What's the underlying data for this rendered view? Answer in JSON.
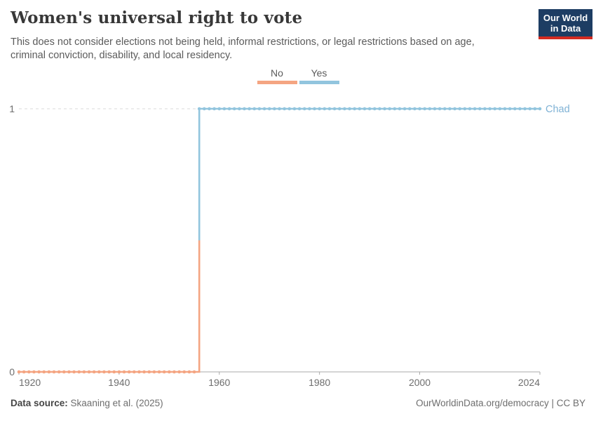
{
  "header": {
    "title": "Women's universal right to vote",
    "subtitle": "This does not consider elections not being held, informal restrictions, or legal restrictions based on age, criminal conviction, disability, and local residency.",
    "logo": {
      "line1": "Our World",
      "line2": "in Data"
    }
  },
  "legend": {
    "items": [
      {
        "label": "No",
        "color": "#F4A582"
      },
      {
        "label": "Yes",
        "color": "#92C5DE"
      }
    ]
  },
  "chart_data": {
    "type": "line",
    "step": true,
    "title": "Women's universal right to vote",
    "entity": "Chad",
    "xlim": [
      1920,
      2024
    ],
    "ylim": [
      0,
      1
    ],
    "x_ticks": [
      1920,
      1940,
      1960,
      1980,
      2000,
      2024
    ],
    "y_ticks": [
      0,
      1
    ],
    "grid": "dashed horizontal gridline at y=1, solid axis at y=0",
    "legend_position": "top-center",
    "series": [
      {
        "name": "Chad",
        "label_color": "#7fb2d5",
        "segments": [
          {
            "label": "No",
            "value": 0,
            "from_year": 1920,
            "to_year": 1955,
            "color": "#F4A582"
          },
          {
            "label": "Yes",
            "value": 1,
            "from_year": 1956,
            "to_year": 2024,
            "color": "#92C5DE"
          }
        ]
      }
    ]
  },
  "footer": {
    "source_label": "Data source:",
    "source_value": "Skaaning et al. (2025)",
    "attribution": "OurWorldinData.org/democracy | CC BY"
  },
  "colors": {
    "axis": "#a8a8a8",
    "gridline": "#d9d9d9",
    "tick_text": "#6e6e6e",
    "logo_navy": "#1d3d63",
    "logo_red": "#d42b21"
  }
}
